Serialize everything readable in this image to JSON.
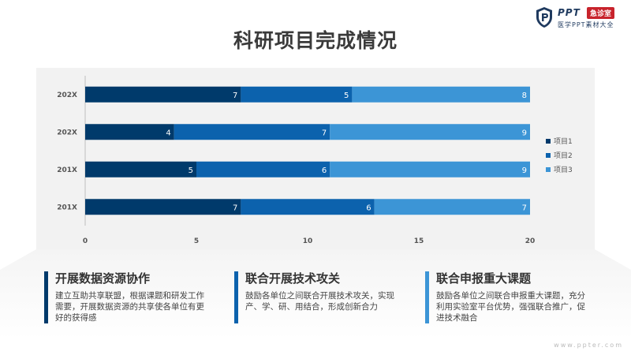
{
  "logo": {
    "brand": "PPT",
    "badge": "急诊室",
    "subtitle": "医学PPT素材大全"
  },
  "title": "科研项目完成情况",
  "chart_data": {
    "type": "bar",
    "orientation": "horizontal",
    "stacked": true,
    "categories": [
      "202X",
      "202X",
      "201X",
      "201X"
    ],
    "series": [
      {
        "name": "项目1",
        "values": [
          7,
          4,
          5,
          7
        ],
        "color": "#003a6b"
      },
      {
        "name": "项目2",
        "values": [
          5,
          7,
          6,
          6
        ],
        "color": "#0c62ad"
      },
      {
        "name": "项目3",
        "values": [
          8,
          9,
          9,
          7
        ],
        "color": "#3c95d6"
      }
    ],
    "xlim": [
      0,
      20
    ],
    "xticks": [
      "0",
      "5",
      "10",
      "15",
      "20"
    ],
    "grid": false,
    "legend": "right",
    "data_labels": true
  },
  "blocks": [
    {
      "heading": "开展数据资源协作",
      "body": "建立互助共享联盟，根据课题和研发工作需要，开展数据资源的共享使各单位有更好的获得感",
      "color": "#003a6b"
    },
    {
      "heading": "联合开展技术攻关",
      "body": "鼓励各单位之间联合开展技术攻关，实现产、学、研、用结合，形成创新合力",
      "color": "#0c62ad"
    },
    {
      "heading": "联合申报重大课题",
      "body": "鼓励各单位之间联合申报重大课题，充分利用实验室平台优势，强强联合推广，促进技术融合",
      "color": "#3c95d6"
    }
  ],
  "watermark": "www.ppter.com"
}
